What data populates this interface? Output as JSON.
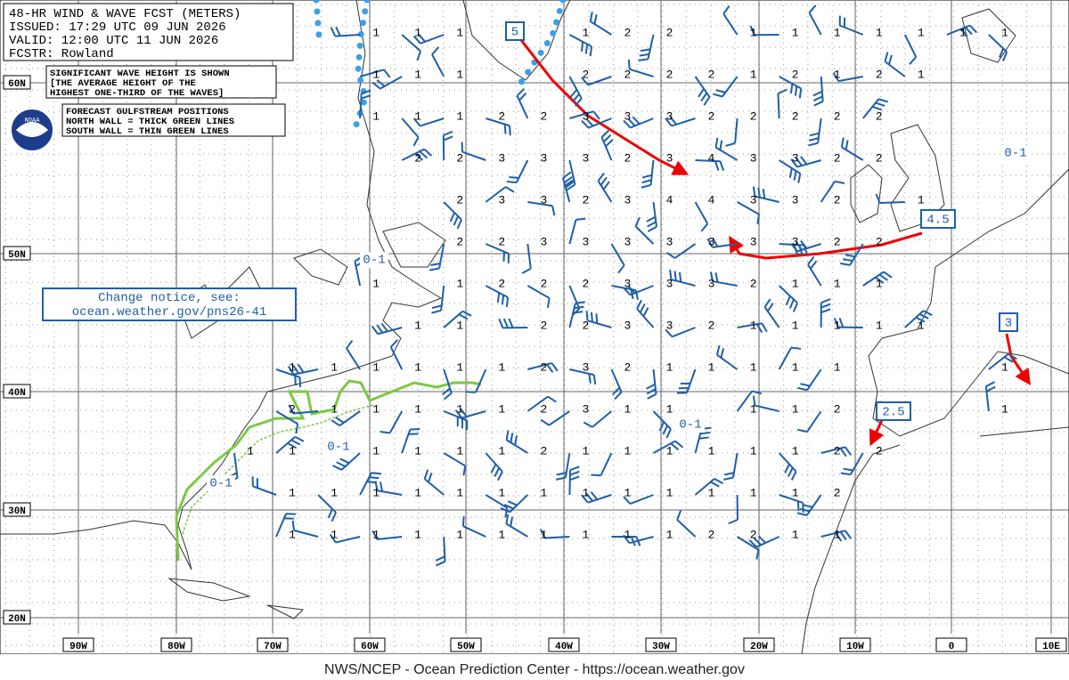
{
  "header": {
    "lines": [
      "48-HR WIND & WAVE FCST (METERS)",
      "ISSUED: 17:29 UTC 09 JUN 2026",
      "VALID:  12:00 UTC 11 JUN 2026",
      "FCSTR:  Rowland"
    ]
  },
  "notes": {
    "wave": [
      "SIGNIFICANT WAVE HEIGHT IS SHOWN",
      "[THE AVERAGE HEIGHT OF THE",
      "HIGHEST ONE-THIRD OF THE WAVES]"
    ],
    "gulfstream": [
      "FORECAST GULFSTREAM POSITIONS",
      "NORTH WALL = THICK GREEN LINES",
      "SOUTH WALL = THIN GREEN LINES"
    ]
  },
  "logo": "NOAA",
  "notice": [
    "Change notice, see:",
    "ocean.weather.gov/pns26-41"
  ],
  "lat_labels": [
    "60N",
    "50N",
    "40N",
    "30N",
    "20N"
  ],
  "lon_labels": [
    "90W",
    "80W",
    "70W",
    "60W",
    "50W",
    "40W",
    "30W",
    "20W",
    "10W",
    "0",
    "10E"
  ],
  "wave_heights": {
    "rows": [
      [
        null,
        null,
        null,
        "1",
        "1",
        "1",
        null,
        null,
        "1",
        "2",
        "2",
        null,
        "1",
        "1",
        "1",
        "1",
        "1",
        "1",
        "1"
      ],
      [
        null,
        null,
        null,
        "1",
        "1",
        "1",
        null,
        null,
        "2",
        "2",
        "2",
        "2",
        "1",
        "2",
        "1",
        "2",
        "1",
        null,
        null
      ],
      [
        null,
        null,
        null,
        "1",
        "1",
        "1",
        "2",
        "2",
        "3",
        "3",
        "3",
        "2",
        "2",
        "2",
        "2",
        "2",
        null,
        null,
        null
      ],
      [
        null,
        null,
        null,
        null,
        "2",
        "2",
        "3",
        "3",
        "3",
        "2",
        "3",
        "4",
        "3",
        "3",
        "2",
        "2",
        null,
        null,
        null
      ],
      [
        null,
        null,
        null,
        null,
        null,
        "2",
        "3",
        "3",
        "2",
        "3",
        "4",
        "4",
        "3",
        "3",
        "2",
        null,
        "1",
        null,
        null
      ],
      [
        null,
        null,
        null,
        null,
        null,
        "2",
        "2",
        "3",
        "3",
        "3",
        "3",
        "3",
        "3",
        "3",
        "2",
        "2",
        null,
        null,
        null
      ],
      [
        null,
        null,
        null,
        "1",
        null,
        "1",
        "2",
        "2",
        "2",
        "3",
        "3",
        "3",
        "2",
        "1",
        "1",
        "1",
        null,
        null,
        null
      ],
      [
        null,
        null,
        null,
        null,
        "1",
        "1",
        null,
        "2",
        "2",
        "3",
        "3",
        "2",
        "1",
        "1",
        "1",
        "1",
        "1",
        null,
        null
      ],
      [
        null,
        "1",
        "1",
        "1",
        "1",
        "1",
        "1",
        "2",
        "3",
        "2",
        "1",
        "1",
        "1",
        "1",
        "1",
        null,
        null,
        null,
        "1"
      ],
      [
        null,
        "2",
        "1",
        "1",
        "1",
        "1",
        "1",
        "2",
        "3",
        "1",
        "1",
        null,
        "1",
        "1",
        "2",
        null,
        null,
        null,
        "1"
      ],
      [
        "1",
        "1",
        null,
        "1",
        "1",
        "1",
        "1",
        "2",
        "1",
        "1",
        "1",
        "1",
        "1",
        "1",
        "2",
        "2",
        null,
        null,
        null
      ],
      [
        null,
        "1",
        "1",
        "1",
        "1",
        "1",
        "1",
        "1",
        "1",
        "1",
        "1",
        "1",
        "1",
        "1",
        "2",
        null,
        null,
        null,
        null
      ],
      [
        null,
        "1",
        "1",
        "1",
        "1",
        "1",
        "1",
        "1",
        "1",
        "1",
        "1",
        "2",
        "2",
        "1",
        "1",
        null,
        null,
        null,
        null
      ]
    ]
  },
  "range_labels": [
    "0-1",
    "0-1",
    "0-1",
    "0-1",
    "0-1"
  ],
  "box_labels": [
    "5",
    "4.5",
    "3",
    "2.5"
  ],
  "footer": "NWS/NCEP - Ocean Prediction Center - https://ocean.weather.gov"
}
